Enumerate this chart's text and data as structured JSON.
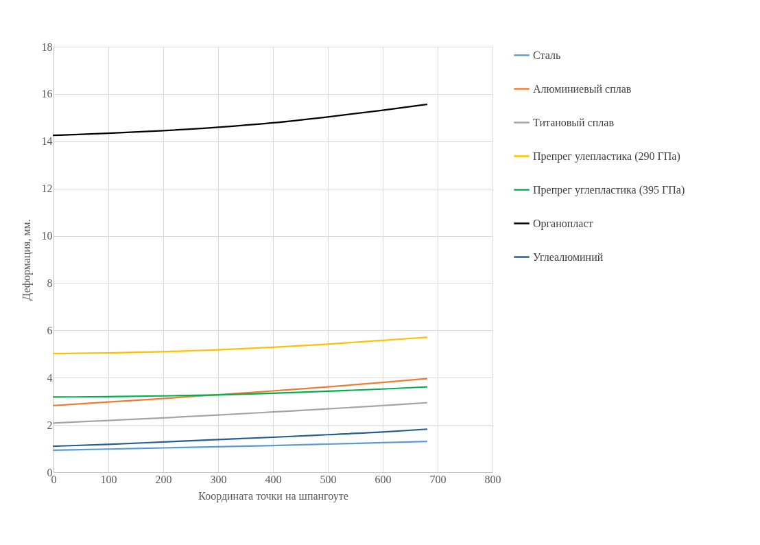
{
  "chart_data": {
    "type": "line",
    "xlabel": "Координата точки на шпангоуте",
    "ylabel": "Деформация, мм.",
    "x": [
      0,
      100,
      200,
      300,
      400,
      500,
      600,
      680
    ],
    "xlim": [
      0,
      800
    ],
    "xticks": [
      0,
      100,
      200,
      300,
      400,
      500,
      600,
      700,
      800
    ],
    "ylim": [
      0,
      18
    ],
    "yticks": [
      0,
      2,
      4,
      6,
      8,
      10,
      12,
      14,
      16,
      18
    ],
    "grid": true,
    "legend": "right",
    "series": [
      {
        "name": "Сталь",
        "color": "#5b9bd5",
        "values": [
          0.93,
          0.98,
          1.03,
          1.08,
          1.13,
          1.19,
          1.25,
          1.3
        ]
      },
      {
        "name": "Алюминиевый сплав",
        "color": "#ed7d31",
        "values": [
          2.82,
          2.97,
          3.12,
          3.28,
          3.44,
          3.61,
          3.8,
          3.96
        ]
      },
      {
        "name": "Титановый сплав",
        "color": "#a5a5a5",
        "values": [
          2.08,
          2.19,
          2.3,
          2.42,
          2.55,
          2.68,
          2.82,
          2.94
        ]
      },
      {
        "name": "Препрег улепластика (290 ГПа)",
        "color": "#ffc000",
        "values": [
          5.02,
          5.05,
          5.1,
          5.18,
          5.29,
          5.42,
          5.58,
          5.71
        ]
      },
      {
        "name": "Препрег углепластика (395 ГПа)",
        "color": "#00b050",
        "values": [
          3.18,
          3.2,
          3.23,
          3.27,
          3.34,
          3.43,
          3.52,
          3.61
        ]
      },
      {
        "name": "Органопласт",
        "color": "#000000",
        "values": [
          14.25,
          14.34,
          14.45,
          14.59,
          14.78,
          15.03,
          15.31,
          15.56
        ]
      },
      {
        "name": "Углеалюминий",
        "color": "#255e91",
        "values": [
          1.1,
          1.18,
          1.28,
          1.38,
          1.48,
          1.59,
          1.7,
          1.82
        ]
      }
    ]
  }
}
